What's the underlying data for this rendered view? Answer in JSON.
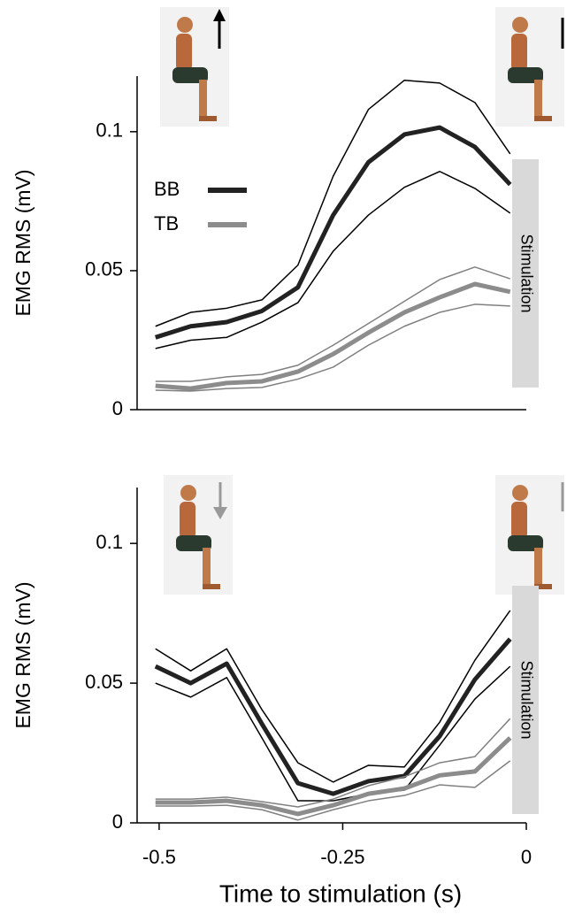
{
  "chart_data": [
    {
      "type": "line",
      "ylabel": "EMG RMS (mV)",
      "annotation": "Stimulation",
      "legend": "upper-left",
      "xlim": [
        -0.53,
        0
      ],
      "ylim": [
        0,
        0.12
      ],
      "yticks": [
        0,
        0.05,
        0.1
      ],
      "x": [
        -0.505,
        -0.457,
        -0.408,
        -0.36,
        -0.311,
        -0.263,
        -0.215,
        -0.166,
        -0.118,
        -0.07,
        -0.022
      ],
      "series": [
        {
          "name": "BB",
          "color": "#222222",
          "line_width": 5,
          "values": [
            0.026,
            0.03,
            0.0315,
            0.0355,
            0.044,
            0.07,
            0.089,
            0.099,
            0.1015,
            0.0945,
            0.081
          ]
        },
        {
          "color": "#000000",
          "line_width": 1.5,
          "values": [
            0.03,
            0.035,
            0.0365,
            0.0395,
            0.052,
            0.084,
            0.108,
            0.1185,
            0.1175,
            0.1105,
            0.092
          ]
        },
        {
          "color": "#000000",
          "line_width": 1.5,
          "values": [
            0.022,
            0.025,
            0.026,
            0.0315,
            0.0385,
            0.057,
            0.07,
            0.08,
            0.0857,
            0.0796,
            0.0707
          ]
        },
        {
          "name": "TB",
          "color": "#8c8c8c",
          "line_width": 5,
          "values": [
            0.0086,
            0.0076,
            0.0096,
            0.0102,
            0.0137,
            0.02,
            0.0277,
            0.035,
            0.0404,
            0.0452,
            0.0424
          ]
        },
        {
          "color": "#808080",
          "line_width": 1.5,
          "values": [
            0.0102,
            0.0102,
            0.0118,
            0.0127,
            0.016,
            0.0232,
            0.031,
            0.039,
            0.0468,
            0.0513,
            0.0471
          ]
        },
        {
          "color": "#808080",
          "line_width": 1.5,
          "values": [
            0.007,
            0.0067,
            0.0076,
            0.008,
            0.011,
            0.0153,
            0.0232,
            0.03,
            0.035,
            0.0379,
            0.0373
          ]
        }
      ]
    },
    {
      "type": "line",
      "ylabel": "EMG RMS (mV)",
      "xlabel": "Time to stimulation (s)",
      "annotation": "Stimulation",
      "xlim": [
        -0.53,
        0
      ],
      "ylim": [
        0,
        0.12
      ],
      "yticks": [
        0,
        0.05,
        0.1
      ],
      "xticks": [
        -0.5,
        -0.25,
        0
      ],
      "x": [
        -0.505,
        -0.457,
        -0.408,
        -0.36,
        -0.311,
        -0.263,
        -0.215,
        -0.166,
        -0.118,
        -0.07,
        -0.022
      ],
      "series": [
        {
          "color": "#222222",
          "line_width": 5,
          "values": [
            0.056,
            0.05,
            0.057,
            0.0354,
            0.0142,
            0.0104,
            0.0149,
            0.0168,
            0.031,
            0.0513,
            0.0658
          ]
        },
        {
          "color": "#000000",
          "line_width": 1.5,
          "values": [
            0.0623,
            0.0544,
            0.0623,
            0.0405,
            0.0215,
            0.0146,
            0.0206,
            0.02,
            0.036,
            0.0582,
            0.076
          ]
        },
        {
          "color": "#000000",
          "line_width": 1.5,
          "values": [
            0.05,
            0.045,
            0.052,
            0.0304,
            0.0079,
            0.0079,
            0.0104,
            0.0117,
            0.0278,
            0.0443,
            0.056
          ]
        },
        {
          "color": "#8c8c8c",
          "line_width": 5,
          "values": [
            0.0073,
            0.0073,
            0.0079,
            0.0063,
            0.0032,
            0.0063,
            0.0104,
            0.0123,
            0.017,
            0.0184,
            0.0304
          ]
        },
        {
          "color": "#808080",
          "line_width": 1.5,
          "values": [
            0.0085,
            0.0085,
            0.0092,
            0.0076,
            0.0057,
            0.0085,
            0.0133,
            0.0165,
            0.0215,
            0.0237,
            0.0373
          ]
        },
        {
          "color": "#808080",
          "line_width": 1.5,
          "values": [
            0.006,
            0.006,
            0.0063,
            0.0047,
            0.001,
            0.0047,
            0.0079,
            0.0098,
            0.0136,
            0.0127,
            0.0222
          ]
        }
      ]
    }
  ]
}
